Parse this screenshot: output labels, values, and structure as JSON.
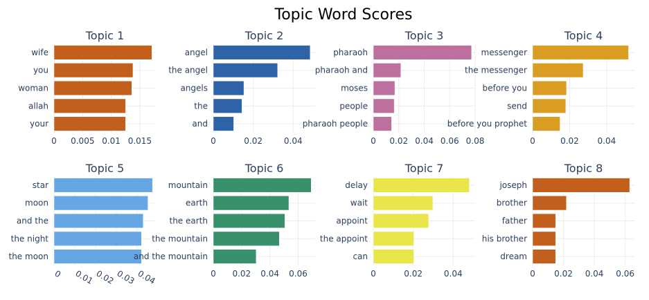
{
  "chart_data": {
    "title": "Topic Word Scores",
    "type": "bar",
    "orientation": "horizontal",
    "grid": true,
    "subplots": [
      {
        "title": "Topic 1",
        "color": "#C35F1C",
        "categories": [
          "wife",
          "you",
          "woman",
          "allah",
          "your"
        ],
        "values": [
          0.0171,
          0.0138,
          0.0136,
          0.0125,
          0.0125
        ],
        "xlim": [
          0,
          0.0178
        ],
        "ticks": [
          0,
          0.005,
          0.01,
          0.015
        ],
        "tick_labels": [
          "0",
          "0.005",
          "0.01",
          "0.015"
        ]
      },
      {
        "title": "Topic 2",
        "color": "#2E63A8",
        "categories": [
          "angel",
          "the angel",
          "angels",
          "the",
          "and"
        ],
        "values": [
          0.0485,
          0.0322,
          0.0153,
          0.0143,
          0.0102
        ],
        "xlim": [
          0,
          0.051
        ],
        "ticks": [
          0,
          0.02,
          0.04
        ],
        "tick_labels": [
          "0",
          "0.02",
          "0.04"
        ]
      },
      {
        "title": "Topic 3",
        "color": "#BD709E",
        "categories": [
          "pharaoh",
          "pharaoh and",
          "moses",
          "people",
          "pharaoh people"
        ],
        "values": [
          0.0772,
          0.0216,
          0.0169,
          0.0164,
          0.0143
        ],
        "xlim": [
          0,
          0.08
        ],
        "ticks": [
          0,
          0.02,
          0.04,
          0.06,
          0.08
        ],
        "tick_labels": [
          "0",
          "0.02",
          "0.04",
          "0.06",
          "0.08"
        ]
      },
      {
        "title": "Topic 4",
        "color": "#DA9D24",
        "categories": [
          "messenger",
          "the messenger",
          "before you",
          "send",
          "before you prophet"
        ],
        "values": [
          0.0518,
          0.0273,
          0.0183,
          0.0179,
          0.0148
        ],
        "xlim": [
          0,
          0.055
        ],
        "ticks": [
          0,
          0.02,
          0.04
        ],
        "tick_labels": [
          "0",
          "0.02",
          "0.04"
        ]
      },
      {
        "title": "Topic 5",
        "color": "#66A7E3",
        "categories": [
          "star",
          "moon",
          "and the",
          "the night",
          "the moon"
        ],
        "values": [
          0.0474,
          0.0452,
          0.0429,
          0.0421,
          0.0421
        ],
        "xlim": [
          0,
          0.049
        ],
        "ticks": [
          0,
          0.01,
          0.02,
          0.03,
          0.04
        ],
        "tick_labels": [
          "0",
          "0.01",
          "0.02",
          "0.03",
          "0.04"
        ]
      },
      {
        "title": "Topic 6",
        "color": "#39906B",
        "categories": [
          "mountain",
          "earth",
          "the earth",
          "the mountain",
          "and the mountain"
        ],
        "values": [
          0.0692,
          0.0534,
          0.0506,
          0.0467,
          0.0303
        ],
        "xlim": [
          0,
          0.072
        ],
        "ticks": [
          0,
          0.02,
          0.04,
          0.06
        ],
        "tick_labels": [
          "0",
          "0.02",
          "0.04",
          "0.06"
        ]
      },
      {
        "title": "Topic 7",
        "color": "#E8E64B",
        "categories": [
          "delay",
          "wait",
          "appoint",
          "the appoint",
          "can"
        ],
        "values": [
          0.0481,
          0.0298,
          0.0277,
          0.0203,
          0.0203
        ],
        "xlim": [
          0,
          0.051
        ],
        "ticks": [
          0,
          0.02,
          0.04
        ],
        "tick_labels": [
          "0",
          "0.02",
          "0.04"
        ]
      },
      {
        "title": "Topic 8",
        "color": "#C35F1C",
        "categories": [
          "joseph",
          "brother",
          "father",
          "his brother",
          "dream"
        ],
        "values": [
          0.0629,
          0.0219,
          0.0149,
          0.0149,
          0.0149
        ],
        "xlim": [
          0,
          0.066
        ],
        "ticks": [
          0,
          0.02,
          0.04,
          0.06
        ],
        "tick_labels": [
          "0",
          "0.02",
          "0.04",
          "0.06"
        ]
      }
    ]
  }
}
